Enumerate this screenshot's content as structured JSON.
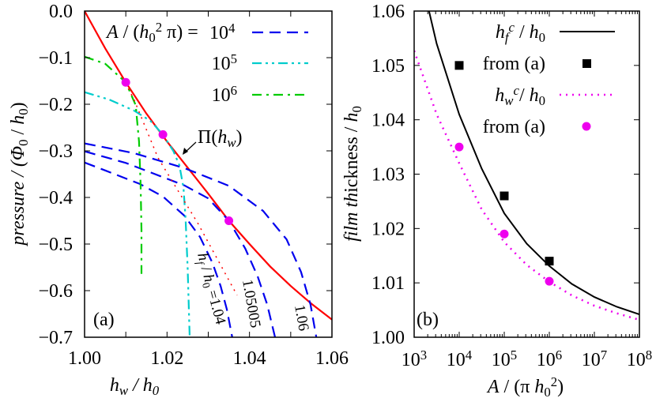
{
  "chart_data": [
    {
      "panel": "(a)",
      "type": "line",
      "xlabel": "h_{w} / h_{0}",
      "ylabel": "pressure / (Φ_{0} / h_{0})",
      "xlim": [
        1.0,
        1.06
      ],
      "ylim": [
        -0.7,
        0.0
      ],
      "xticks": [
        "1.00",
        "1.02",
        "1.04",
        "1.06"
      ],
      "yticks": [
        "0.0",
        "−0.1",
        "−0.2",
        "−0.3",
        "−0.4",
        "−0.5",
        "−0.6",
        "−0.7"
      ],
      "grid": false,
      "legend_placement": "top-right",
      "legend_title": "A / (h_{0}^{2} π) =",
      "legend": [
        "10^{4}",
        "10^{5}",
        "10^{6}"
      ],
      "annotation": "Π(h_{w})",
      "curve_labels": [
        "h_{f} / h_{0} =1.04",
        "1.05005",
        "1.06"
      ],
      "colors": {
        "pi": "#ff0000",
        "a1e4": "#0000ee",
        "a1e5": "#00cccc",
        "a1e6": "#00cc00",
        "points": "#ee00ee"
      },
      "series": [
        {
          "name": "Π(h_w)",
          "style": "solid",
          "color": "#ff0000",
          "points": [
            [
              1.0,
              0.0
            ],
            [
              1.005,
              -0.08
            ],
            [
              1.01,
              -0.153
            ],
            [
              1.015,
              -0.22
            ],
            [
              1.02,
              -0.28
            ],
            [
              1.025,
              -0.336
            ],
            [
              1.03,
              -0.392
            ],
            [
              1.035,
              -0.45
            ],
            [
              1.04,
              -0.5
            ],
            [
              1.045,
              -0.548
            ],
            [
              1.05,
              -0.59
            ],
            [
              1.055,
              -0.628
            ],
            [
              1.06,
              -0.662
            ]
          ]
        },
        {
          "name": "10^4, h_f/h_0=1.04",
          "style": "dashed",
          "color": "#0000ee",
          "points": [
            [
              1.0,
              -0.325
            ],
            [
              1.005,
              -0.342
            ],
            [
              1.0134,
              -0.371
            ],
            [
              1.019,
              -0.398
            ],
            [
              1.0242,
              -0.439
            ],
            [
              1.028,
              -0.485
            ],
            [
              1.031,
              -0.54
            ],
            [
              1.033,
              -0.59
            ],
            [
              1.0345,
              -0.64
            ],
            [
              1.0358,
              -0.7
            ]
          ]
        },
        {
          "name": "10^4, h_f/h_0=1.05005",
          "style": "dashed",
          "color": "#0000ee",
          "points": [
            [
              1.0,
              -0.301
            ],
            [
              1.01,
              -0.326
            ],
            [
              1.0242,
              -0.374
            ],
            [
              1.03,
              -0.402
            ],
            [
              1.035,
              -0.45
            ],
            [
              1.039,
              -0.51
            ],
            [
              1.042,
              -0.57
            ],
            [
              1.0443,
              -0.63
            ],
            [
              1.0462,
              -0.7
            ]
          ]
        },
        {
          "name": "10^4, h_f/h_0=1.06",
          "style": "dashed",
          "color": "#0000ee",
          "points": [
            [
              1.0,
              -0.284
            ],
            [
              1.012,
              -0.305
            ],
            [
              1.0242,
              -0.337
            ],
            [
              1.035,
              -0.375
            ],
            [
              1.0433,
              -0.429
            ],
            [
              1.049,
              -0.49
            ],
            [
              1.0525,
              -0.56
            ],
            [
              1.0548,
              -0.63
            ],
            [
              1.0562,
              -0.7
            ]
          ]
        },
        {
          "name": "10^5",
          "style": "dash-dot-dot",
          "color": "#00cccc",
          "points": [
            [
              1.0,
              -0.174
            ],
            [
              1.006,
              -0.19
            ],
            [
              1.0121,
              -0.214
            ],
            [
              1.016,
              -0.236
            ],
            [
              1.019,
              -0.265
            ],
            [
              1.0215,
              -0.3
            ],
            [
              1.023,
              -0.331
            ],
            [
              1.024,
              -0.38
            ],
            [
              1.0245,
              -0.446
            ],
            [
              1.025,
              -0.55
            ],
            [
              1.0255,
              -0.7
            ]
          ]
        },
        {
          "name": "10^6",
          "style": "dash-dot",
          "color": "#00cc00",
          "points": [
            [
              1.0,
              -0.098
            ],
            [
              1.005,
              -0.113
            ],
            [
              1.01,
              -0.153
            ],
            [
              1.0124,
              -0.202
            ],
            [
              1.0132,
              -0.28
            ],
            [
              1.0136,
              -0.371
            ],
            [
              1.0138,
              -0.47
            ],
            [
              1.0138,
              -0.564
            ]
          ]
        },
        {
          "name": "connecting",
          "style": "dotted",
          "color": "#ff0000",
          "points": [
            [
              1.0085,
              -0.13
            ],
            [
              1.012,
              -0.19
            ],
            [
              1.0178,
              -0.315
            ],
            [
              1.0275,
              -0.456
            ],
            [
              1.037,
              -0.61
            ]
          ]
        }
      ],
      "markers": {
        "color": "#ee00ee",
        "points": [
          [
            1.01,
            -0.153
          ],
          [
            1.019,
            -0.265
          ],
          [
            1.035,
            -0.45
          ]
        ]
      }
    },
    {
      "panel": "(b)",
      "type": "line",
      "xlabel": "A / (π h_{0}^{2})",
      "ylabel": "film thickness / h_{0}",
      "xscale": "log",
      "xlim": [
        1000,
        100000000
      ],
      "ylim": [
        1.0,
        1.06
      ],
      "xticks": [
        "10^{3}",
        "10^{4}",
        "10^{5}",
        "10^{6}",
        "10^{7}",
        "10^{8}"
      ],
      "yticks": [
        "1.00",
        "1.01",
        "1.02",
        "1.03",
        "1.04",
        "1.05",
        "1.06"
      ],
      "grid": false,
      "legend_placement": "top-right",
      "legend": [
        "h_{f}^{c} / h_{0}",
        "from (a)",
        "h_{w}^{c}/ h_{0}",
        "from (a)"
      ],
      "colors": {
        "hf": "#000000",
        "hw": "#ee00ee"
      },
      "series": [
        {
          "name": "h_f^c / h_0",
          "style": "solid",
          "color": "#000000",
          "x": [
            2138,
            3162,
            10000,
            31623,
            100000,
            316228,
            1000000,
            3162278,
            10000000,
            31622777,
            100000000
          ],
          "y": [
            1.06,
            1.054,
            1.041,
            1.031,
            1.0228,
            1.0172,
            1.0131,
            1.0098,
            1.0074,
            1.0056,
            1.0042
          ]
        },
        {
          "name": "h_w^c / h_0",
          "style": "dotted",
          "color": "#ee00ee",
          "x": [
            1000,
            3162,
            10000,
            31623,
            100000,
            316228,
            1000000,
            3162278,
            10000000,
            31622777,
            100000000
          ],
          "y": [
            1.0527,
            1.041,
            1.032,
            1.0235,
            1.0175,
            1.0133,
            1.0102,
            1.0077,
            1.0058,
            1.0044,
            1.0032
          ]
        },
        {
          "name": "from (a) squares",
          "style": "square",
          "color": "#000000",
          "x": [
            10000,
            100000,
            1000000
          ],
          "y": [
            1.05,
            1.026,
            1.014
          ]
        },
        {
          "name": "from (a) circles",
          "style": "circle",
          "color": "#ee00ee",
          "x": [
            10000,
            100000,
            1000000
          ],
          "y": [
            1.035,
            1.019,
            1.0103
          ]
        }
      ]
    }
  ]
}
